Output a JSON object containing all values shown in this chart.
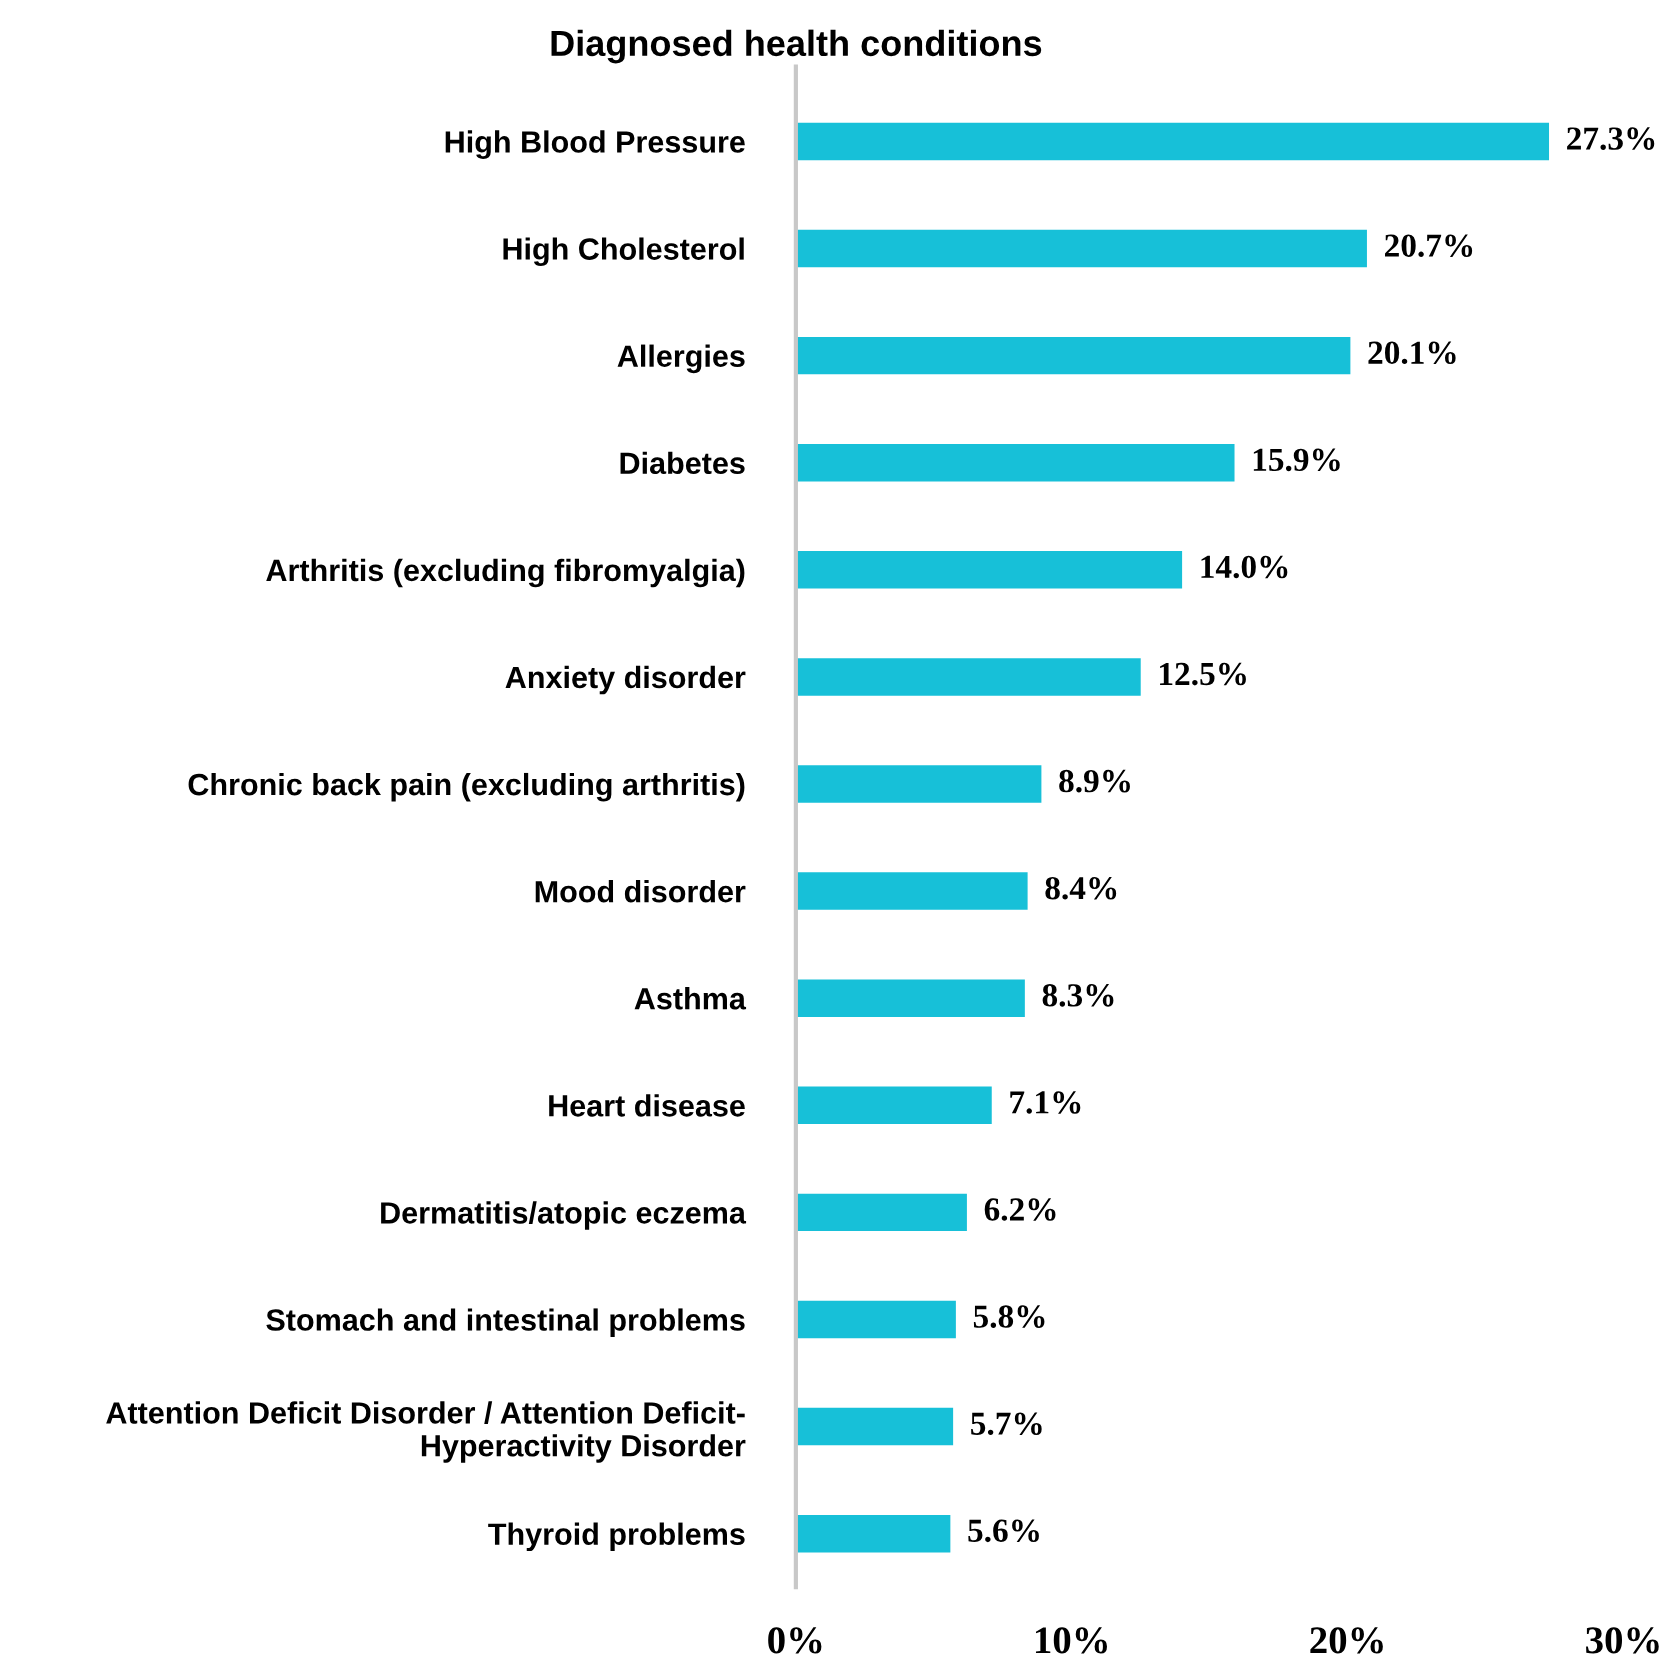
{
  "chart_data": {
    "type": "bar",
    "orientation": "horizontal",
    "title": "Diagnosed health conditions",
    "categories": [
      "High Blood Pressure",
      "High Cholesterol",
      "Allergies",
      "Diabetes",
      "Arthritis (excluding fibromyalgia)",
      "Anxiety disorder",
      "Chronic back pain (excluding arthritis)",
      "Mood disorder",
      "Asthma",
      "Heart disease",
      "Dermatitis/atopic eczema",
      "Stomach and intestinal problems",
      "Attention Deficit Disorder / Attention Deficit-\nHyperactivity Disorder",
      "Thyroid problems"
    ],
    "values": [
      27.3,
      20.7,
      20.1,
      15.9,
      14.0,
      12.5,
      8.9,
      8.4,
      8.3,
      7.1,
      6.2,
      5.8,
      5.7,
      5.6
    ],
    "value_labels": [
      "27.3%",
      "20.7%",
      "20.1%",
      "15.9%",
      "14.0%",
      "12.5%",
      "8.9%",
      "8.4%",
      "8.3%",
      "7.1%",
      "6.2%",
      "5.8%",
      "5.7%",
      "5.6%"
    ],
    "color": "#17c0d8",
    "xlim": [
      0,
      30
    ],
    "xticks": [
      {
        "value": 0,
        "label": "0%"
      },
      {
        "value": 10,
        "label": "10%"
      },
      {
        "value": 20,
        "label": "20%"
      },
      {
        "value": 30,
        "label": "30%"
      }
    ],
    "grid": false,
    "legend": false
  }
}
